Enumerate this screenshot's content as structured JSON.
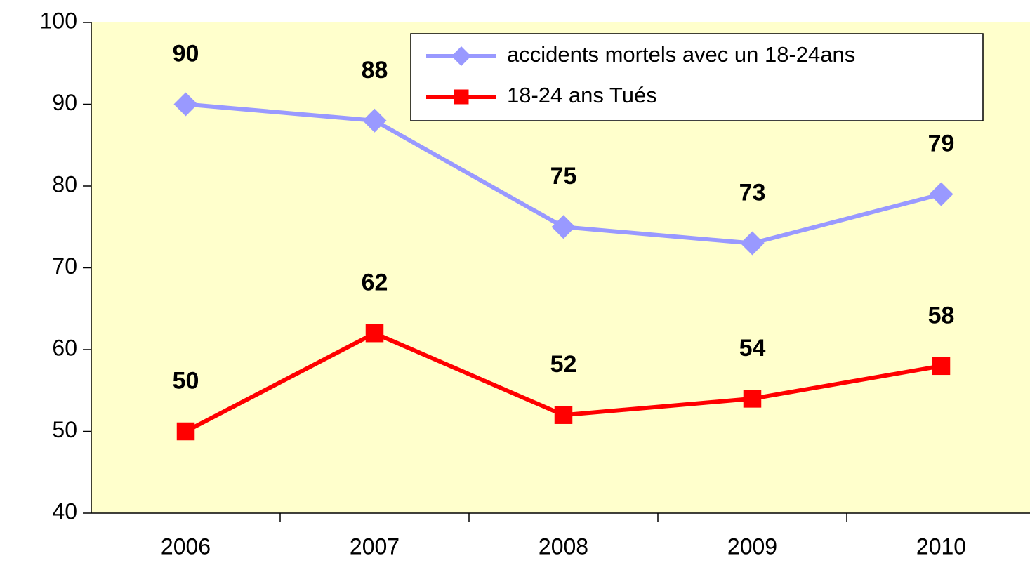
{
  "chart_data": {
    "type": "line",
    "categories": [
      "2006",
      "2007",
      "2008",
      "2009",
      "2010"
    ],
    "series": [
      {
        "name": "accidents mortels avec un 18-24ans",
        "color": "#9999ff",
        "marker": "diamond",
        "values": [
          90,
          88,
          75,
          73,
          79
        ]
      },
      {
        "name": "18-24 ans Tués",
        "color": "#ff0000",
        "marker": "square",
        "values": [
          50,
          62,
          52,
          54,
          58
        ]
      }
    ],
    "ylim": [
      40,
      100
    ],
    "yticks": [
      40,
      50,
      60,
      70,
      80,
      90,
      100
    ],
    "grid": false,
    "legend_position": "upper right",
    "data_labels": true,
    "background": "#ffffcc"
  }
}
